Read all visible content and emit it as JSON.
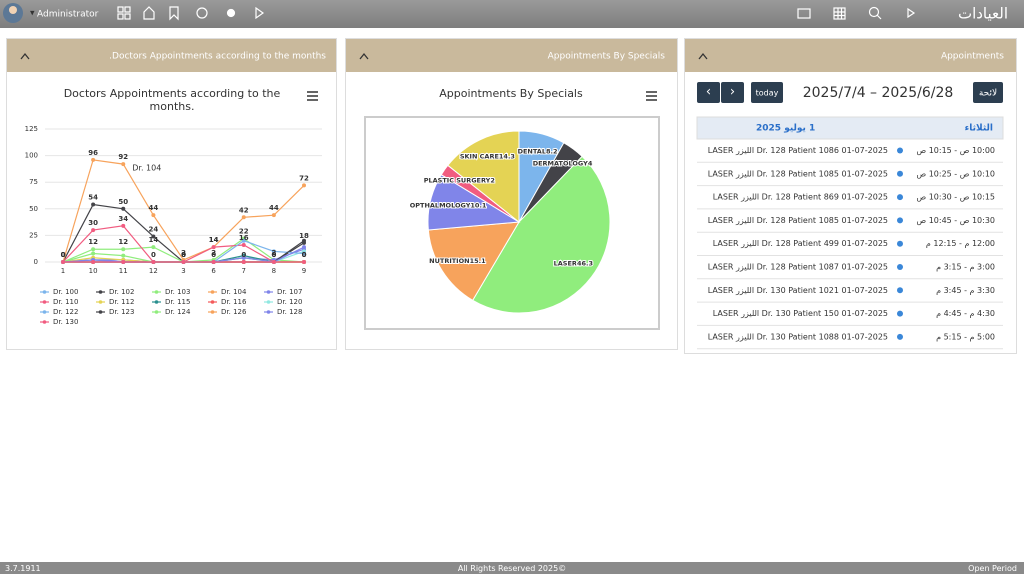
{
  "header": {
    "user": "Administrator",
    "app": "العيادات"
  },
  "chart_data": [
    {
      "type": "line",
      "panel_title": ".Doctors Appointments according to the months",
      "title": "Doctors Appointments according to the",
      "title_line2": "months.",
      "categories": [
        "1",
        "10",
        "11",
        "12",
        "3",
        "6",
        "7",
        "8",
        "9"
      ],
      "ylim": [
        0,
        125
      ],
      "yticks": [
        0,
        25,
        50,
        75,
        100,
        125
      ],
      "grid": true,
      "series": [
        {
          "name": "Dr. 100",
          "color": "#7cb5ec",
          "values": [
            0,
            2,
            0,
            0,
            0,
            0,
            0,
            0,
            0
          ]
        },
        {
          "name": "Dr. 102",
          "color": "#434348",
          "values": [
            0,
            54,
            50,
            24,
            0,
            0,
            0,
            0,
            18
          ],
          "data_labels": true
        },
        {
          "name": "Dr. 103",
          "color": "#90ed7d",
          "values": [
            0,
            12,
            12,
            14,
            0,
            2,
            22,
            2,
            0
          ],
          "data_labels": true
        },
        {
          "name": "Dr. 104",
          "color": "#f7a35c",
          "values": [
            0,
            96,
            92,
            44,
            2,
            14,
            42,
            44,
            72
          ],
          "data_labels": true
        },
        {
          "name": "Dr. 107",
          "color": "#8085e9",
          "values": [
            0,
            2,
            2,
            0,
            0,
            0,
            4,
            2,
            12
          ]
        },
        {
          "name": "Dr. 110",
          "color": "#f15c80",
          "values": [
            0,
            30,
            34,
            0,
            0,
            14,
            16,
            0,
            0
          ],
          "data_labels": true
        },
        {
          "name": "Dr. 112",
          "color": "#e4d354",
          "values": [
            0,
            4,
            2,
            0,
            0,
            0,
            0,
            0,
            0
          ]
        },
        {
          "name": "Dr. 115",
          "color": "#2b908f",
          "values": [
            0,
            0,
            0,
            0,
            0,
            0,
            6,
            0,
            0
          ]
        },
        {
          "name": "Dr. 116",
          "color": "#f45b5b",
          "values": [
            0,
            0,
            0,
            0,
            0,
            0,
            0,
            0,
            0
          ]
        },
        {
          "name": "Dr. 120",
          "color": "#91e8e1",
          "values": [
            0,
            0,
            0,
            0,
            0,
            0,
            0,
            0,
            10
          ]
        },
        {
          "name": "Dr. 122",
          "color": "#7cb5ec",
          "values": [
            0,
            0,
            0,
            0,
            0,
            0,
            20,
            10,
            8
          ]
        },
        {
          "name": "Dr. 123",
          "color": "#434348",
          "values": [
            0,
            0,
            0,
            0,
            0,
            0,
            0,
            0,
            20
          ]
        },
        {
          "name": "Dr. 124",
          "color": "#90ed7d",
          "values": [
            0,
            8,
            6,
            0,
            0,
            0,
            4,
            0,
            0
          ]
        },
        {
          "name": "Dr. 126",
          "color": "#f7a35c",
          "values": [
            0,
            0,
            0,
            0,
            0,
            0,
            0,
            0,
            0
          ]
        },
        {
          "name": "Dr. 128",
          "color": "#8085e9",
          "values": [
            0,
            2,
            0,
            0,
            0,
            0,
            4,
            0,
            14
          ]
        },
        {
          "name": "Dr. 130",
          "color": "#f15c80",
          "values": [
            0,
            0,
            0,
            0,
            0,
            0,
            0,
            0,
            0
          ]
        }
      ],
      "annotation": "Dr. 104"
    },
    {
      "type": "pie",
      "panel_title": "Appointments By Specials",
      "title": "Appointments By Specials",
      "categories": [
        "DENTAL",
        "DERMATOLOGY",
        "LASER",
        "NUTRITION",
        "OPTHALMOLOGY",
        "PLASTIC SURGERY",
        "SKIN CARE"
      ],
      "values": [
        8.2,
        4.0,
        46.3,
        15.1,
        10.1,
        2.0,
        14.3
      ],
      "colors": [
        "#7cb5ec",
        "#434348",
        "#90ed7d",
        "#f7a35c",
        "#8085e9",
        "#f15c80",
        "#e4d354"
      ]
    }
  ],
  "calendar": {
    "panel_title": "Appointments",
    "prev": "‹",
    "next": "›",
    "today": "today",
    "range": "2025/7/4 – 2025/6/28",
    "list": "لائحة",
    "day_name": "الثلاثاء",
    "day_date": "1 يوليو 2025",
    "events": [
      {
        "time": "10:00 ص - 10:15 ص",
        "title": "LASER الليزر Dr. 128 Patient 1086 01-07-2025"
      },
      {
        "time": "10:10 ص - 10:25 ص",
        "title": "LASER الليزر Dr. 128 Patient 1085 01-07-2025"
      },
      {
        "time": "10:15 ص - 10:30 ص",
        "title": "LASER الليزر Dr. 128 Patient 869 01-07-2025"
      },
      {
        "time": "10:30 ص - 10:45 ص",
        "title": "LASER الليزر Dr. 128 Patient 1085 01-07-2025"
      },
      {
        "time": "12:00 م - 12:15 م",
        "title": "LASER الليزر Dr. 128 Patient 499 01-07-2025"
      },
      {
        "time": "3:00 م - 3:15 م",
        "title": "LASER الليزر Dr. 128 Patient 1087 01-07-2025"
      },
      {
        "time": "3:30 م - 3:45 م",
        "title": "LASER الليزر Dr. 130 Patient 1021 01-07-2025"
      },
      {
        "time": "4:30 م - 4:45 م",
        "title": "LASER الليزر Dr. 130 Patient 150 01-07-2025"
      },
      {
        "time": "5:00 م - 5:15 م",
        "title": "LASER الليزر Dr. 130 Patient 1088 01-07-2025"
      }
    ]
  },
  "footer": {
    "version": "3.7.1911",
    "rights": "All Rights Reserved 2025©",
    "period": "Open Period"
  }
}
